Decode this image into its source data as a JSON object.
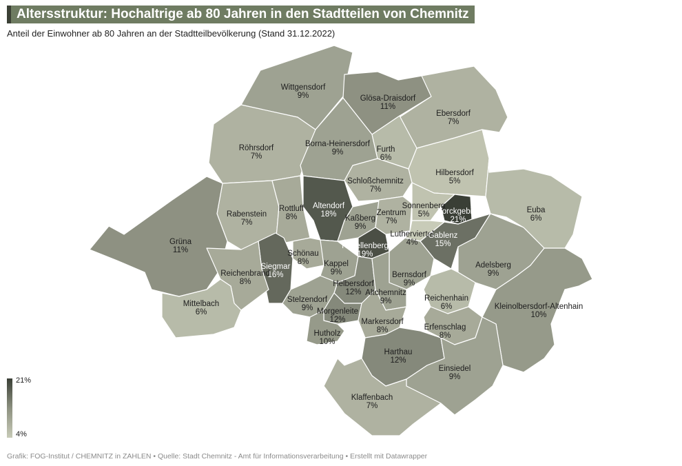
{
  "header": {
    "title": "Altersstruktur: Hochaltrige ab 80 Jahren in den Stadtteilen von Chemnitz",
    "subtitle": "Anteil der Einwohner ab 80 Jahren an der Stadtteilbevölkerung (Stand 31.12.2022)"
  },
  "legend": {
    "max_label": "21%",
    "min_label": "4%",
    "min_value": 4,
    "max_value": 21
  },
  "footer": {
    "text": "Grafik: FOG-Institut / CHEMNITZ in ZAHLEN • Quelle: Stadt Chemnitz - Amt für Informationsverarbeitung • Erstellt mit Datawrapper"
  },
  "districts": [
    {
      "name": "Wittgensdorf",
      "value": 9,
      "label": "9%"
    },
    {
      "name": "Glösa-Draisdorf",
      "value": 11,
      "label": "11%"
    },
    {
      "name": "Ebersdorf",
      "value": 7,
      "label": "7%"
    },
    {
      "name": "Röhrsdorf",
      "value": 7,
      "label": "7%"
    },
    {
      "name": "Borna-Heinersdorf",
      "value": 9,
      "label": "9%"
    },
    {
      "name": "Furth",
      "value": 6,
      "label": "6%"
    },
    {
      "name": "Hilbersdorf",
      "value": 5,
      "label": "5%"
    },
    {
      "name": "Schloßchemnitz",
      "value": 7,
      "label": "7%"
    },
    {
      "name": "Rabenstein",
      "value": 7,
      "label": "7%"
    },
    {
      "name": "Rottluff",
      "value": 8,
      "label": "8%"
    },
    {
      "name": "Altendorf",
      "value": 18,
      "label": "18%"
    },
    {
      "name": "Kaßberg",
      "value": 9,
      "label": "9%"
    },
    {
      "name": "Zentrum",
      "value": 7,
      "label": "7%"
    },
    {
      "name": "Sonnenberg",
      "value": 5,
      "label": "5%"
    },
    {
      "name": "Yorckgebiet",
      "value": 21,
      "label": "21%"
    },
    {
      "name": "Euba",
      "value": 6,
      "label": "6%"
    },
    {
      "name": "Grüna",
      "value": 11,
      "label": "11%"
    },
    {
      "name": "Lutherviertel",
      "value": 4,
      "label": "4%"
    },
    {
      "name": "Gablenz",
      "value": 15,
      "label": "15%"
    },
    {
      "name": "Kapellenberg",
      "value": 19,
      "label": "19%"
    },
    {
      "name": "Schönau",
      "value": 8,
      "label": "8%"
    },
    {
      "name": "Siegmar",
      "value": 16,
      "label": "16%"
    },
    {
      "name": "Kappel",
      "value": 9,
      "label": "9%"
    },
    {
      "name": "Reichenbrand",
      "value": 8,
      "label": "8%"
    },
    {
      "name": "Bernsdorf",
      "value": 9,
      "label": "9%"
    },
    {
      "name": "Adelsberg",
      "value": 9,
      "label": "9%"
    },
    {
      "name": "Helbersdorf",
      "value": 12,
      "label": "12%"
    },
    {
      "name": "Altchemnitz",
      "value": 9,
      "label": "9%"
    },
    {
      "name": "Reichenhain",
      "value": 6,
      "label": "6%"
    },
    {
      "name": "Mittelbach",
      "value": 6,
      "label": "6%"
    },
    {
      "name": "Stelzendorf",
      "value": 9,
      "label": "9%"
    },
    {
      "name": "Kleinolbersdorf-Altenhain",
      "value": 10,
      "label": "10%"
    },
    {
      "name": "Morgenleite",
      "value": 12,
      "label": "12%"
    },
    {
      "name": "Markersdorf",
      "value": 8,
      "label": "8%"
    },
    {
      "name": "Erfenschlag",
      "value": 8,
      "label": "8%"
    },
    {
      "name": "Hutholz",
      "value": 10,
      "label": "10%"
    },
    {
      "name": "Harthau",
      "value": 12,
      "label": "12%"
    },
    {
      "name": "Einsiedel",
      "value": 9,
      "label": "9%"
    },
    {
      "name": "Klaffenbach",
      "value": 7,
      "label": "7%"
    }
  ]
}
